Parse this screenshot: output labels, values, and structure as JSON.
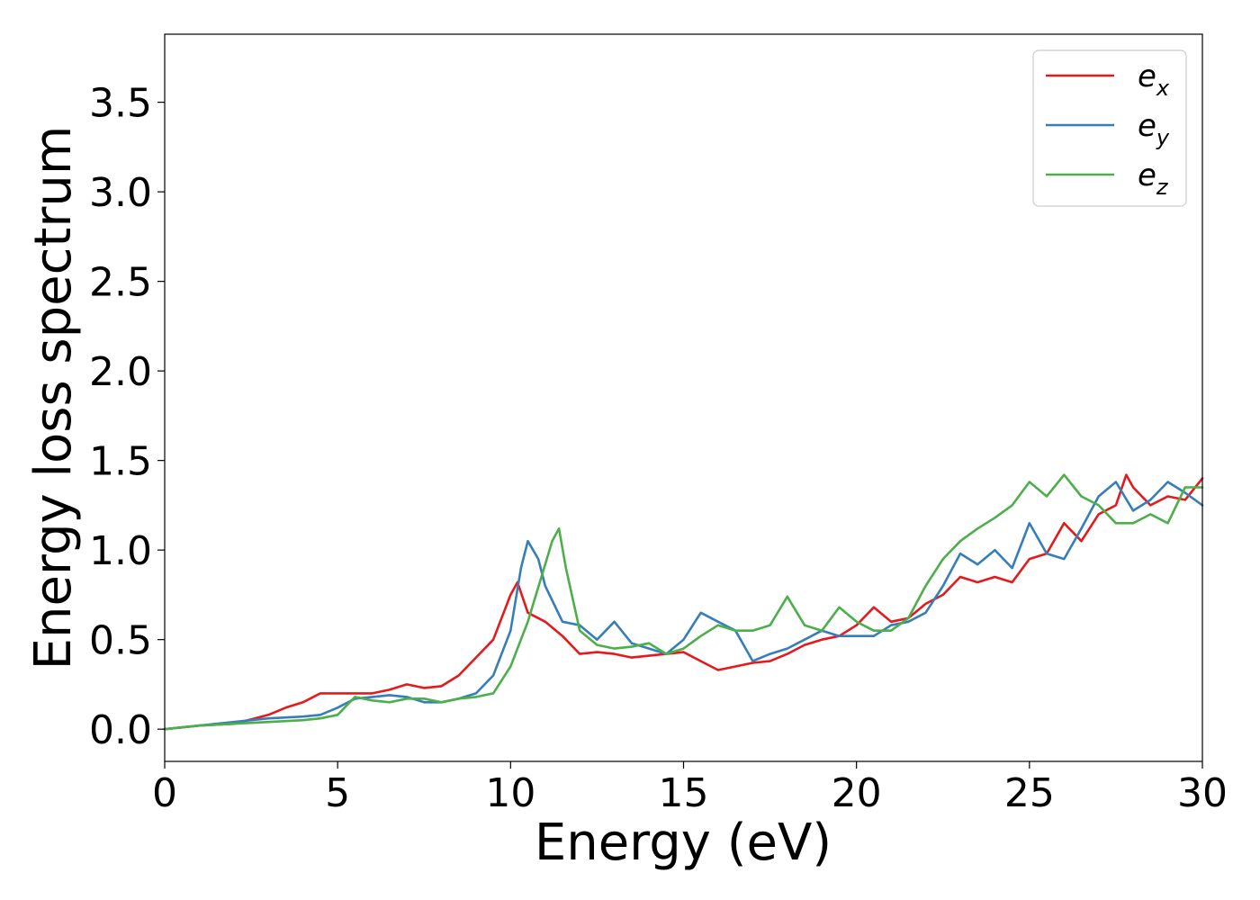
{
  "chart_data": {
    "type": "line",
    "xlabel": "Energy (eV)",
    "ylabel": "Energy loss spectrum",
    "xlim": [
      0,
      30
    ],
    "ylim": [
      -0.18,
      3.88
    ],
    "xticks": [
      0,
      5,
      10,
      15,
      20,
      25,
      30
    ],
    "xtick_labels": [
      "0",
      "5",
      "10",
      "15",
      "20",
      "25",
      "30"
    ],
    "yticks": [
      0.0,
      0.5,
      1.0,
      1.5,
      2.0,
      2.5,
      3.0,
      3.5
    ],
    "ytick_labels": [
      "0.0",
      "0.5",
      "1.0",
      "1.5",
      "2.0",
      "2.5",
      "3.0",
      "3.5"
    ],
    "grid": false,
    "legend_position": "top-right",
    "series": [
      {
        "name": "e",
        "subscript": "x",
        "color": "#e41a1c",
        "x": [
          0,
          1,
          2,
          3,
          3.5,
          4,
          4.5,
          5,
          5.5,
          6,
          6.5,
          7,
          7.5,
          8,
          8.5,
          9,
          9.5,
          10,
          10.2,
          10.5,
          11,
          11.5,
          12,
          12.5,
          13,
          13.5,
          14,
          14.5,
          15,
          15.5,
          16,
          16.5,
          17,
          17.5,
          18,
          18.5,
          19,
          19.5,
          20,
          20.5,
          21,
          21.5,
          22,
          22.5,
          23,
          23.5,
          24,
          24.5,
          25,
          25.5,
          26,
          26.5,
          27,
          27.5,
          27.8,
          28,
          28.5,
          29,
          29.5,
          30
        ],
        "y": [
          0.0,
          0.02,
          0.03,
          0.08,
          0.12,
          0.15,
          0.2,
          0.2,
          0.2,
          0.2,
          0.22,
          0.25,
          0.23,
          0.24,
          0.3,
          0.4,
          0.5,
          0.75,
          0.82,
          0.65,
          0.6,
          0.52,
          0.42,
          0.43,
          0.42,
          0.4,
          0.41,
          0.42,
          0.43,
          0.38,
          0.33,
          0.35,
          0.37,
          0.38,
          0.42,
          0.47,
          0.5,
          0.52,
          0.58,
          0.68,
          0.6,
          0.62,
          0.7,
          0.75,
          0.85,
          0.82,
          0.85,
          0.82,
          0.95,
          0.98,
          1.15,
          1.05,
          1.2,
          1.25,
          1.42,
          1.35,
          1.25,
          1.3,
          1.28,
          1.4
        ]
      },
      {
        "name": "e",
        "subscript": "y",
        "color": "#377eb8",
        "x": [
          0,
          1,
          2,
          3,
          4,
          4.5,
          5,
          5.5,
          6,
          6.5,
          7,
          7.5,
          8,
          8.5,
          9,
          9.5,
          10,
          10.3,
          10.5,
          10.8,
          11,
          11.5,
          12,
          12.5,
          13,
          13.5,
          14,
          14.5,
          15,
          15.5,
          16,
          16.5,
          17,
          17.5,
          18,
          18.5,
          19,
          19.5,
          20,
          20.5,
          21,
          21.5,
          22,
          22.5,
          23,
          23.5,
          24,
          24.5,
          25,
          25.5,
          26,
          26.5,
          27,
          27.5,
          28,
          28.5,
          29,
          29.5,
          30
        ],
        "y": [
          0.0,
          0.02,
          0.04,
          0.06,
          0.07,
          0.08,
          0.12,
          0.17,
          0.18,
          0.19,
          0.18,
          0.15,
          0.15,
          0.17,
          0.2,
          0.3,
          0.55,
          0.9,
          1.05,
          0.95,
          0.8,
          0.6,
          0.58,
          0.5,
          0.6,
          0.48,
          0.45,
          0.42,
          0.5,
          0.65,
          0.6,
          0.55,
          0.38,
          0.42,
          0.45,
          0.5,
          0.55,
          0.52,
          0.52,
          0.52,
          0.58,
          0.6,
          0.65,
          0.8,
          0.98,
          0.92,
          1.0,
          0.9,
          1.15,
          0.98,
          0.95,
          1.12,
          1.3,
          1.38,
          1.22,
          1.28,
          1.38,
          1.32,
          1.25
        ]
      },
      {
        "name": "e",
        "subscript": "z",
        "color": "#4daf4a",
        "x": [
          0,
          1,
          2,
          3,
          4,
          4.5,
          5,
          5.5,
          6,
          6.5,
          7,
          7.5,
          8,
          8.5,
          9,
          9.5,
          10,
          10.5,
          11,
          11.2,
          11.4,
          11.6,
          12,
          12.5,
          13,
          13.5,
          14,
          14.5,
          15,
          15.5,
          16,
          16.5,
          17,
          17.5,
          18,
          18.5,
          19,
          19.5,
          20,
          20.5,
          21,
          21.5,
          22,
          22.5,
          23,
          23.5,
          24,
          24.5,
          25,
          25.5,
          26,
          26.5,
          27,
          27.5,
          28,
          28.5,
          29,
          29.5,
          30
        ],
        "y": [
          0.0,
          0.02,
          0.03,
          0.04,
          0.05,
          0.06,
          0.08,
          0.18,
          0.16,
          0.15,
          0.17,
          0.17,
          0.15,
          0.17,
          0.18,
          0.2,
          0.35,
          0.6,
          0.92,
          1.05,
          1.12,
          0.9,
          0.55,
          0.47,
          0.45,
          0.46,
          0.48,
          0.42,
          0.45,
          0.52,
          0.58,
          0.55,
          0.55,
          0.58,
          0.74,
          0.58,
          0.55,
          0.68,
          0.6,
          0.55,
          0.55,
          0.62,
          0.8,
          0.95,
          1.05,
          1.12,
          1.18,
          1.25,
          1.38,
          1.3,
          1.42,
          1.3,
          1.25,
          1.15,
          1.15,
          1.2,
          1.15,
          1.35,
          1.35
        ]
      }
    ]
  }
}
